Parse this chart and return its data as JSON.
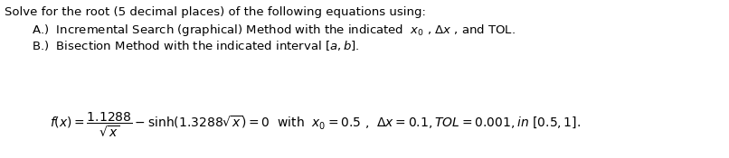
{
  "background_color": "#ffffff",
  "text_color": "#000000",
  "fig_width": 8.06,
  "fig_height": 1.75,
  "dpi": 100,
  "font_size_text": 9.5,
  "font_size_eq": 10.0
}
